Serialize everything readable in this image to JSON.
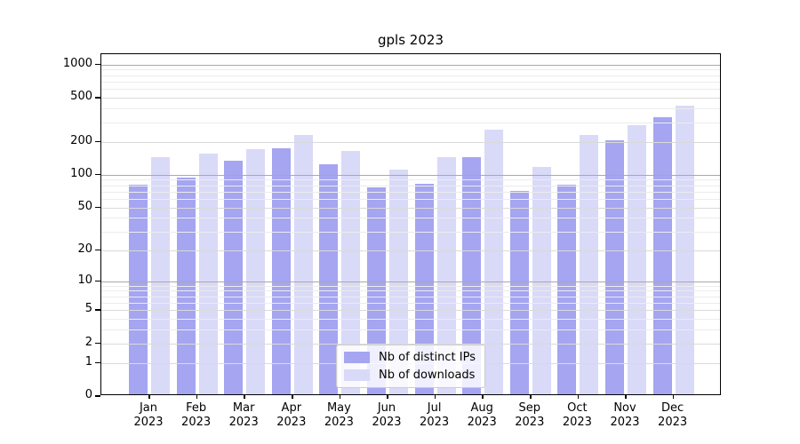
{
  "title": "gpls 2023",
  "legend": {
    "entries": [
      {
        "label": "Nb of distinct IPs",
        "color": "#a5a5f1"
      },
      {
        "label": "Nb of downloads",
        "color": "#d9d9f8"
      }
    ]
  },
  "chart_data": {
    "type": "bar",
    "title": "gpls 2023",
    "categories": [
      "Jan",
      "Feb",
      "Mar",
      "Apr",
      "May",
      "Jun",
      "Jul",
      "Aug",
      "Sep",
      "Oct",
      "Nov",
      "Dec"
    ],
    "year": "2023",
    "series": [
      {
        "name": "Nb of distinct IPs",
        "color": "#a5a5f1",
        "values": [
          78,
          90,
          130,
          168,
          120,
          74,
          80,
          140,
          68,
          78,
          198,
          320
        ]
      },
      {
        "name": "Nb of downloads",
        "color": "#d9d9f8",
        "values": [
          138,
          150,
          165,
          222,
          160,
          108,
          138,
          246,
          113,
          220,
          270,
          410
        ]
      }
    ],
    "xlabel": "",
    "ylabel": "",
    "y_scale": "log1p",
    "y_ticks": [
      0,
      1,
      2,
      5,
      10,
      20,
      50,
      100,
      200,
      500,
      1000
    ],
    "ylim": [
      0,
      1240
    ],
    "grid": "on",
    "legend_position": "lower center"
  }
}
